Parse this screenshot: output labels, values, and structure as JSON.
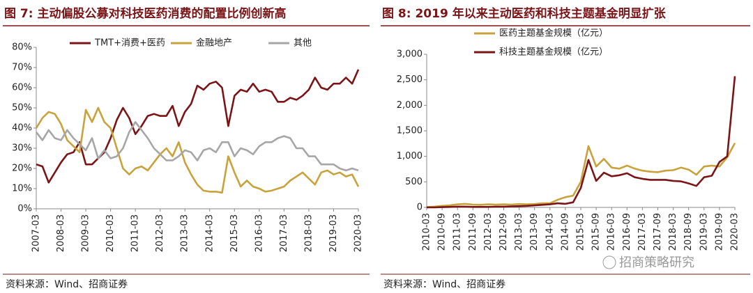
{
  "chart_data": [
    {
      "type": "line",
      "title": "图 7: 主动偏股公募对科技医药消费的配置比例创新高",
      "source": "资料来源：Wind、招商证券",
      "categories": [
        "2007-03",
        null,
        null,
        null,
        "2008-03",
        null,
        null,
        null,
        "2009-03",
        null,
        null,
        null,
        "2010-03",
        null,
        null,
        null,
        "2011-03",
        null,
        null,
        null,
        "2012-03",
        null,
        null,
        null,
        "2013-03",
        null,
        null,
        null,
        "2014-03",
        null,
        null,
        null,
        "2015-03",
        null,
        null,
        null,
        "2016-03",
        null,
        null,
        null,
        "2017-03",
        null,
        null,
        null,
        "2018-03",
        null,
        null,
        null,
        "2019-03",
        null,
        null,
        null,
        "2020-03"
      ],
      "series": [
        {
          "name": "TMT+消费+医药",
          "color": "#7b1416",
          "values": [
            22,
            21,
            13,
            18,
            23,
            27,
            28,
            33,
            22,
            22,
            25,
            28,
            35,
            44,
            50,
            45,
            37,
            41,
            46,
            47,
            46,
            46,
            51,
            41,
            48,
            52,
            61,
            59,
            62,
            63,
            60,
            41,
            56,
            59,
            58,
            62,
            58,
            59,
            58,
            53,
            53,
            55,
            54,
            56,
            59,
            65,
            60,
            59,
            62,
            62,
            65,
            62,
            69
          ]
        },
        {
          "name": "金融地产",
          "color": "#c8a23a",
          "values": [
            40,
            45,
            48,
            47,
            42,
            34,
            31,
            28,
            49,
            43,
            50,
            43,
            40,
            30,
            20,
            17,
            20,
            21,
            19,
            23,
            27,
            30,
            26,
            33,
            23,
            17,
            12,
            9,
            8.5,
            8.5,
            8,
            26,
            18,
            11,
            14,
            11,
            10,
            8.5,
            9,
            10,
            11,
            14,
            16,
            18,
            15,
            12,
            18,
            19,
            17,
            18,
            16,
            17,
            11
          ]
        },
        {
          "name": "其他",
          "color": "#a6a6a6",
          "values": [
            38,
            34,
            39,
            35,
            34,
            39,
            35,
            32,
            29,
            35,
            25,
            29,
            25,
            26,
            30,
            38,
            43,
            39,
            35,
            30,
            27,
            24,
            24,
            26,
            29,
            28,
            24,
            29,
            30,
            28,
            33,
            33,
            26,
            30,
            29,
            27,
            31,
            33,
            33,
            35,
            36,
            35,
            30,
            30,
            26,
            26,
            22,
            22,
            22,
            20,
            19,
            20,
            19
          ]
        }
      ],
      "ylim": [
        0,
        80
      ],
      "yticks": [
        {
          "value": 0,
          "label": "0%"
        },
        {
          "value": 10,
          "label": "10%"
        },
        {
          "value": 20,
          "label": "20%"
        },
        {
          "value": 30,
          "label": "30%"
        },
        {
          "value": 40,
          "label": "40%"
        },
        {
          "value": 50,
          "label": "50%"
        },
        {
          "value": 60,
          "label": "60%"
        },
        {
          "value": 70,
          "label": "70%"
        },
        {
          "value": 80,
          "label": "80%"
        }
      ],
      "legend": "top"
    },
    {
      "type": "line",
      "title": "图 8: 2019 年以来主动医药和科技主题基金明显扩张",
      "source": "资料来源：Wind、招商证券",
      "watermark": "招商策略研究",
      "categories": [
        "2010-03",
        null,
        "2010-09",
        null,
        "2011-03",
        null,
        "2011-09",
        null,
        "2012-03",
        null,
        "2012-09",
        null,
        "2013-03",
        null,
        "2013-09",
        null,
        "2014-03",
        null,
        "2014-09",
        null,
        "2015-03",
        null,
        "2015-09",
        null,
        "2016-03",
        null,
        "2016-09",
        null,
        "2017-03",
        null,
        "2017-09",
        null,
        "2018-03",
        null,
        "2018-09",
        null,
        "2019-03",
        null,
        "2019-09",
        null,
        "2020-03"
      ],
      "series": [
        {
          "name": "医药主题基金规模（亿元）",
          "color": "#c8a23a",
          "values": [
            5,
            15,
            30,
            40,
            60,
            70,
            55,
            50,
            60,
            55,
            60,
            55,
            65,
            60,
            65,
            80,
            80,
            150,
            200,
            230,
            500,
            1200,
            800,
            950,
            780,
            760,
            820,
            760,
            720,
            700,
            690,
            720,
            730,
            780,
            740,
            640,
            800,
            820,
            800,
            980,
            1260
          ]
        },
        {
          "name": "科技主题基金规模（亿元）",
          "color": "#7b1416",
          "values": [
            0,
            0,
            5,
            10,
            15,
            15,
            10,
            10,
            10,
            15,
            15,
            20,
            25,
            30,
            40,
            50,
            60,
            80,
            70,
            100,
            380,
            930,
            520,
            680,
            610,
            630,
            670,
            590,
            560,
            540,
            540,
            540,
            520,
            510,
            470,
            420,
            590,
            620,
            890,
            1000,
            2570
          ]
        }
      ],
      "ylim": [
        0,
        3000
      ],
      "yticks": [
        0,
        500,
        {
          "value": 1000,
          "label": "1,000"
        },
        {
          "value": 1500,
          "label": "1,500"
        },
        {
          "value": 2000,
          "label": "2,000"
        },
        {
          "value": 2500,
          "label": "2,500"
        },
        {
          "value": 3000,
          "label": "3,000"
        }
      ],
      "legend": "top-left"
    }
  ]
}
